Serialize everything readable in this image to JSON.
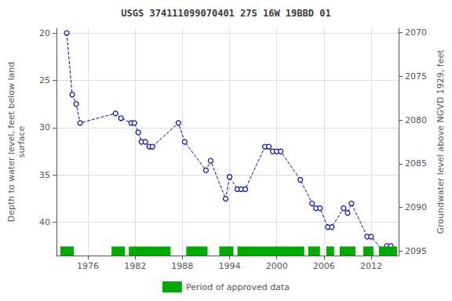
{
  "chart_data": {
    "type": "line",
    "title": "USGS 374111099070401 27S 16W 19BBD 01",
    "ylabel": "Depth to water level, feet below land\nsurface",
    "y2label": "Groundwater level above NGVD 1929, feet",
    "x": [
      1973.3,
      1974.0,
      1974.5,
      1975.0,
      1979.5,
      1980.2,
      1981.5,
      1981.9,
      1982.4,
      1982.8,
      1983.3,
      1983.8,
      1984.2,
      1987.5,
      1988.3,
      1991.0,
      1991.6,
      1993.5,
      1994.0,
      1995.0,
      1995.5,
      1996.0,
      1998.5,
      1999.0,
      1999.5,
      2000.0,
      2000.5,
      2003.0,
      2004.5,
      2005.0,
      2005.5,
      2006.5,
      2007.0,
      2008.5,
      2009.0,
      2009.5,
      2011.5,
      2012.0,
      2013.5,
      2014.0,
      2014.5
    ],
    "values": [
      20.0,
      26.5,
      27.5,
      29.5,
      28.5,
      29.0,
      29.5,
      29.5,
      30.5,
      31.5,
      31.5,
      32.0,
      32.0,
      29.5,
      31.5,
      34.5,
      33.5,
      37.5,
      35.2,
      36.5,
      36.5,
      36.5,
      32.0,
      32.0,
      32.5,
      32.5,
      32.5,
      35.5,
      38.0,
      38.5,
      38.5,
      40.5,
      40.5,
      38.5,
      39.0,
      38.0,
      41.5,
      41.5,
      43.0,
      42.5,
      42.5
    ],
    "color": "#0000cc",
    "marker": "circle",
    "line_style": "dashed",
    "xlim": [
      1972,
      2015.5
    ],
    "xticks": [
      1976,
      1982,
      1988,
      1994,
      2000,
      2006,
      2012
    ],
    "ylim": [
      43.5,
      19.5
    ],
    "yticks": [
      20,
      25,
      30,
      35,
      40
    ],
    "y2lim": [
      2095.5,
      2069.5
    ],
    "y2ticks": [
      2070,
      2075,
      2080,
      2085,
      2090,
      2095
    ],
    "grid": true,
    "legend": "bottom",
    "approved_periods": {
      "name": "Period of approved data",
      "color": "#00aa00",
      "ranges": [
        [
          1972.5,
          1974.2
        ],
        [
          1979.0,
          1980.7
        ],
        [
          1981.2,
          1986.5
        ],
        [
          1988.5,
          1991.2
        ],
        [
          1992.7,
          1994.5
        ],
        [
          1995.0,
          2003.5
        ],
        [
          2004.0,
          2005.5
        ],
        [
          2006.3,
          2007.3
        ],
        [
          2008.0,
          2010.0
        ],
        [
          2011.0,
          2012.3
        ],
        [
          2013.0,
          2015.3
        ]
      ]
    }
  }
}
